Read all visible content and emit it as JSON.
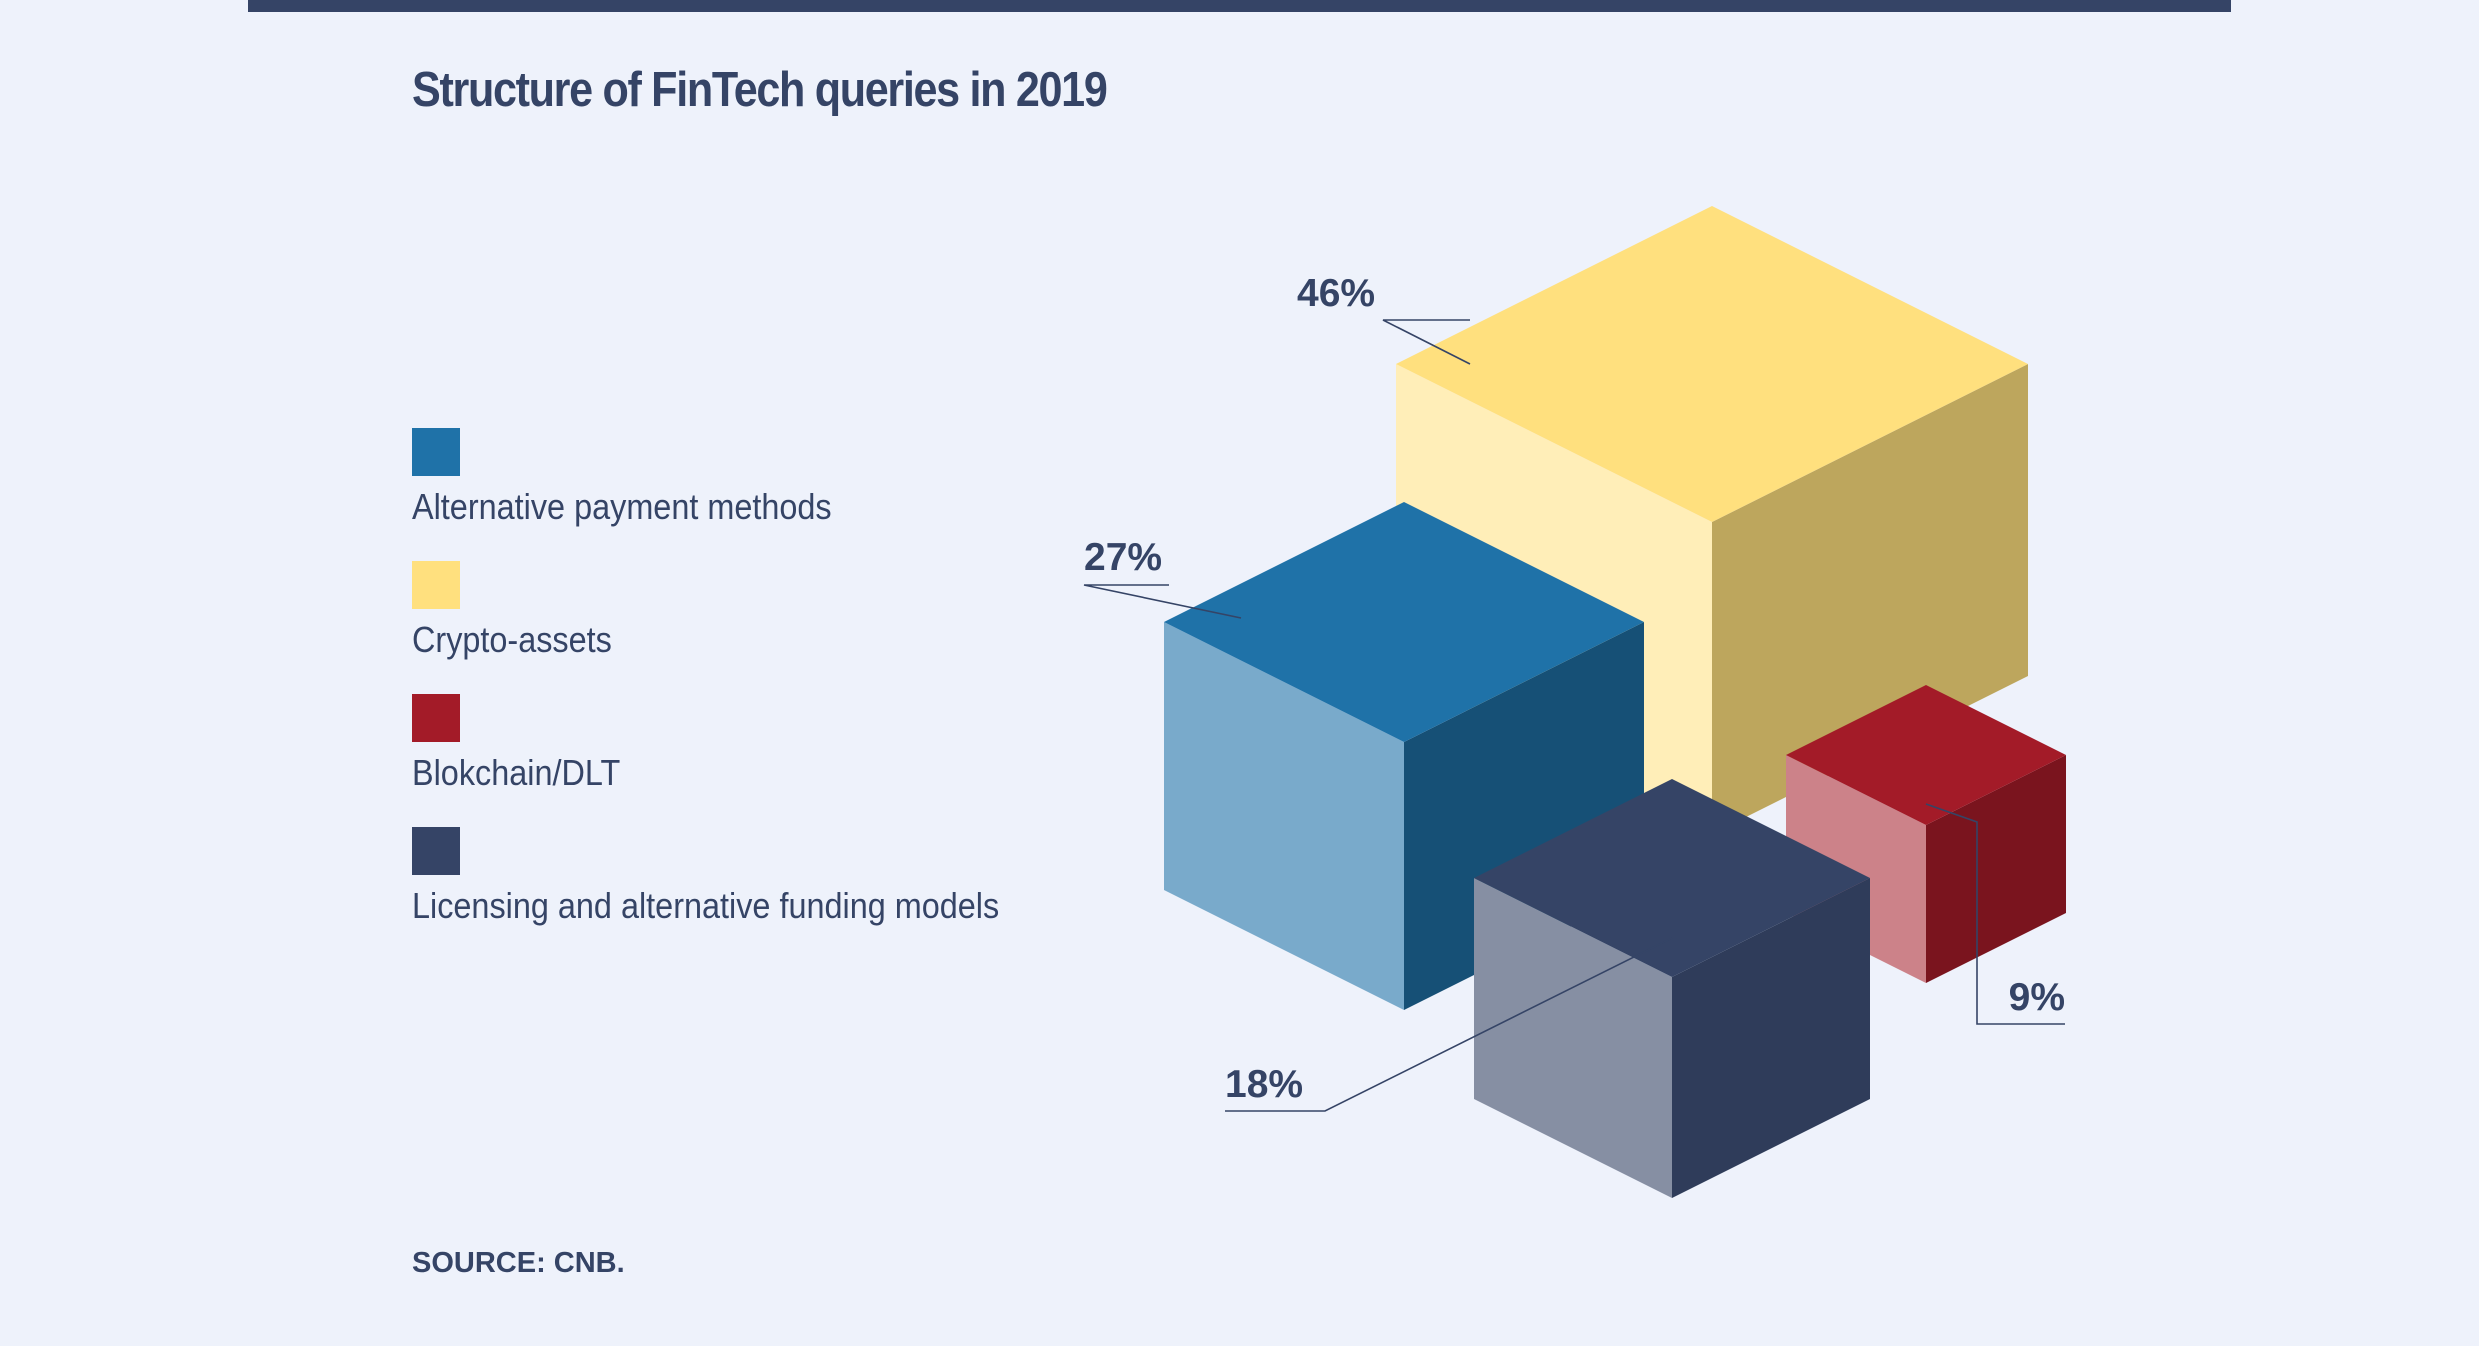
{
  "header": {
    "title": "Structure of FinTech queries in 2019"
  },
  "footer": {
    "source": "SOURCE: CNB."
  },
  "chart_data": {
    "type": "isometric-cube",
    "title": "Structure of FinTech queries in 2019",
    "unit": "%",
    "legend_position": "left",
    "series": [
      {
        "name": "Alternative payment methods",
        "value": 27,
        "label": "27%",
        "color": "#1f72a8"
      },
      {
        "name": "Crypto-assets",
        "value": 46,
        "label": "46%",
        "color": "#ffe07e"
      },
      {
        "name": "Blokchain/DLT",
        "value": 9,
        "label": "9%",
        "color": "#a31b28"
      },
      {
        "name": "Licensing and alternative funding models",
        "value": 18,
        "label": "18%",
        "color": "#354466"
      }
    ]
  }
}
